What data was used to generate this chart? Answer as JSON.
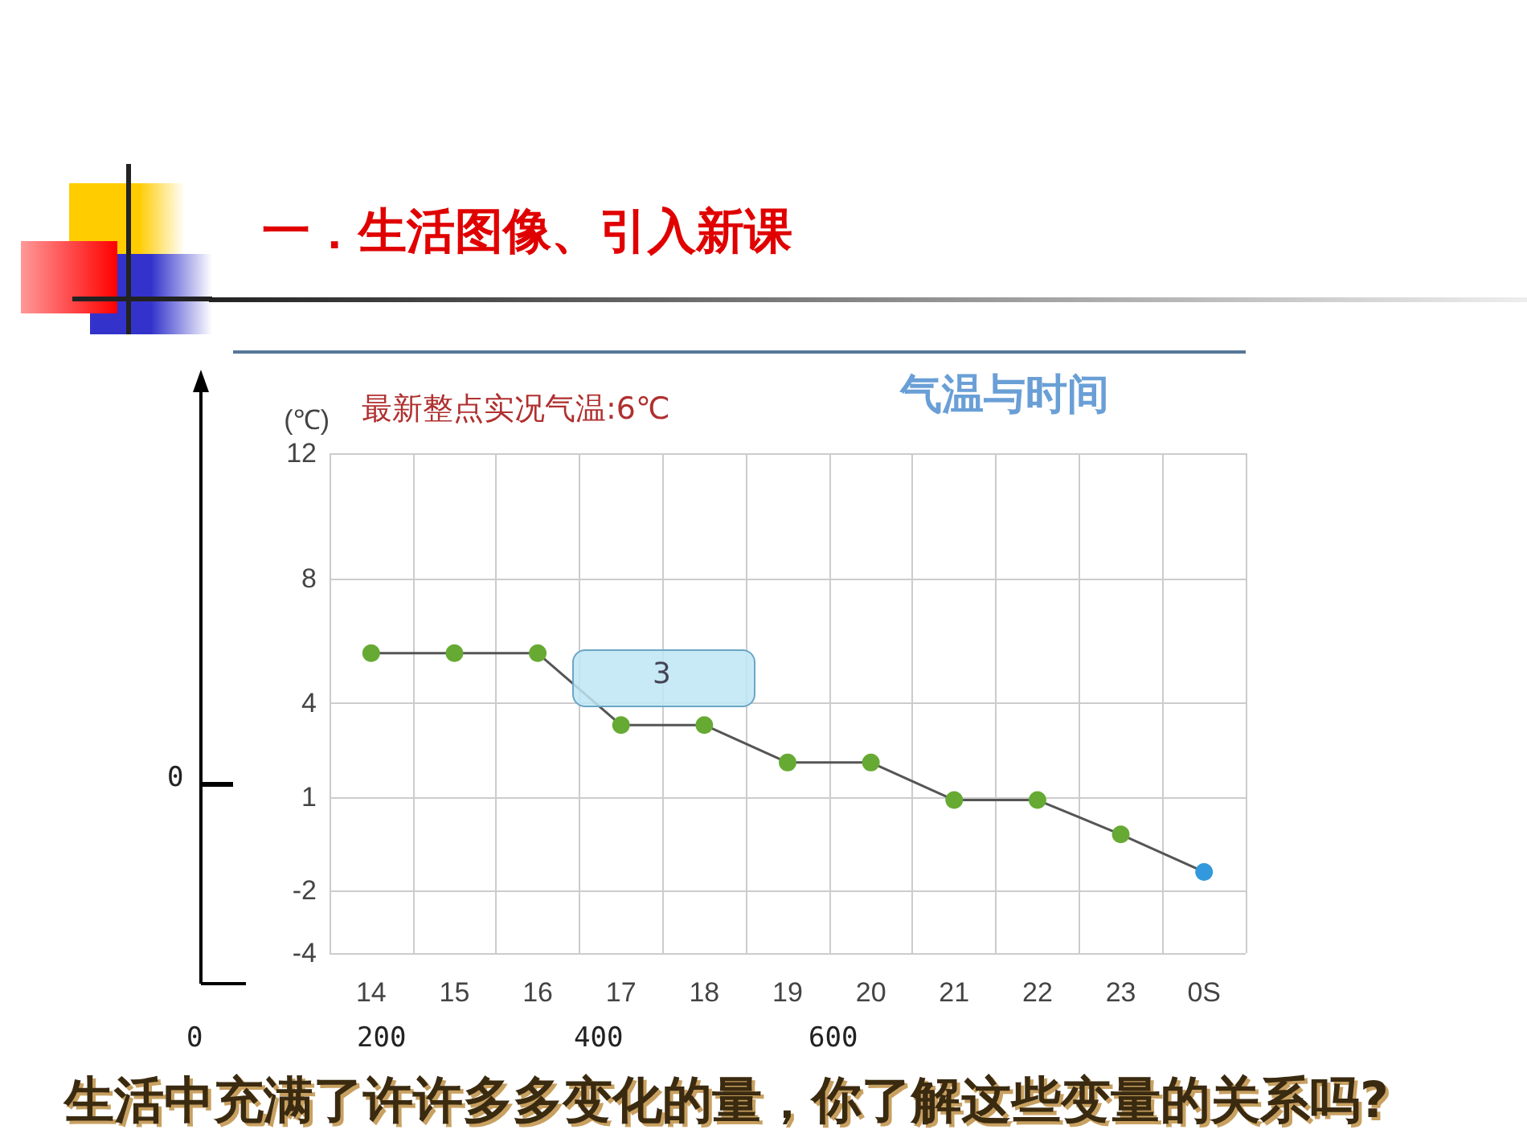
{
  "chart_data": {
    "type": "line",
    "title": "气温与时间",
    "subtitle": "最新整点实况气温:6℃",
    "ylabel": "(℃)",
    "categories": [
      "14",
      "15",
      "16",
      "17",
      "18",
      "19",
      "20",
      "21",
      "22",
      "23",
      "0S"
    ],
    "series": [
      {
        "values": [
          5.6,
          5.6,
          5.6,
          3.3,
          3.3,
          2.1,
          2.1,
          0.9,
          0.9,
          -0.2,
          -1.4
        ],
        "colors": [
          "#66aa33",
          "#66aa33",
          "#66aa33",
          "#66aa33",
          "#66aa33",
          "#66aa33",
          "#66aa33",
          "#66aa33",
          "#66aa33",
          "#66aa33",
          "#3399dd"
        ]
      }
    ],
    "ylim": [
      -4,
      12
    ],
    "yticks": [
      -4,
      -2,
      1,
      4,
      8,
      12
    ],
    "grid": true,
    "marker": "circle",
    "line_style": "solid",
    "annotations": [
      "一．生活图像、引入新课",
      "生活中充满了许许多多变化的量，你了解这些变量的关系吗?",
      "3",
      "0",
      "200",
      "400",
      "600",
      "0"
    ]
  }
}
